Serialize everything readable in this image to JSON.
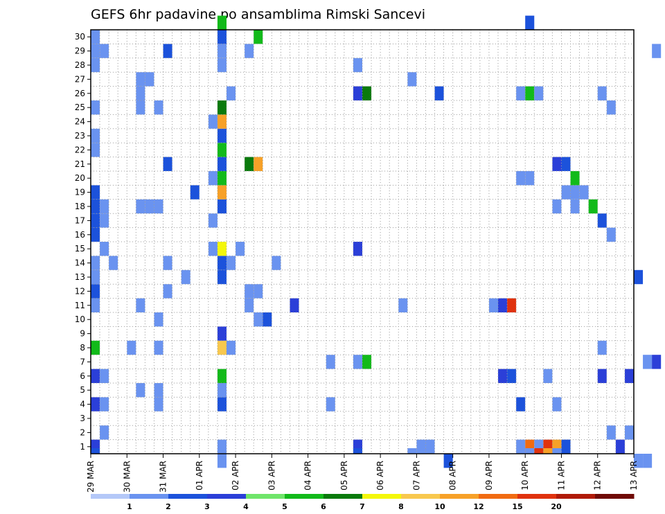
{
  "chart_data": {
    "type": "heatmap",
    "title": "GEFS 6hr padavine po ansamblima Rimski Sancevi",
    "xlabel": "",
    "ylabel": "",
    "x_tick_labels": [
      "29 MAR",
      "30 MAR",
      "31 MAR",
      "01 APR",
      "02 APR",
      "03 APR",
      "04 APR",
      "05 APR",
      "06 APR",
      "07 APR",
      "08 APR",
      "09 APR",
      "10 APR",
      "11 APR",
      "12 APR",
      "13 APR"
    ],
    "time_steps_per_day": 4,
    "y_tick_labels": [
      "1",
      "2",
      "3",
      "4",
      "5",
      "6",
      "7",
      "8",
      "9",
      "10",
      "11",
      "12",
      "13",
      "14",
      "15",
      "16",
      "17",
      "18",
      "19",
      "20",
      "21",
      "22",
      "23",
      "24",
      "25",
      "26",
      "27",
      "28",
      "29",
      "30"
    ],
    "ylim": [
      0,
      30
    ],
    "grid": true,
    "colorbar": {
      "labels": [
        "1",
        "2",
        "3",
        "4",
        "5",
        "6",
        "7",
        "8",
        "10",
        "12",
        "15",
        "20"
      ],
      "colors": [
        "#b4c8f8",
        "#6a93f0",
        "#1c52db",
        "#2b3fd8",
        "#6fe56a",
        "#12ba1a",
        "#0a7a0c",
        "#f4f70a",
        "#f8c84e",
        "#f7a128",
        "#f16b12",
        "#e0320e",
        "#b01a08",
        "#6f0a06"
      ]
    },
    "cells": [
      {
        "t": 0,
        "m": 0,
        "b": 3
      },
      {
        "t": 0,
        "m": 3,
        "b": 3
      },
      {
        "t": 0,
        "m": 5,
        "b": 3
      },
      {
        "t": 0,
        "m": 7,
        "b": 5
      },
      {
        "t": 0,
        "m": 10,
        "b": 1
      },
      {
        "t": 0,
        "m": 11,
        "b": 2
      },
      {
        "t": 0,
        "m": 12,
        "b": 1
      },
      {
        "t": 0,
        "m": 13,
        "b": 1
      },
      {
        "t": 0,
        "m": 15,
        "b": 2
      },
      {
        "t": 0,
        "m": 16,
        "b": 2
      },
      {
        "t": 0,
        "m": 17,
        "b": 2
      },
      {
        "t": 0,
        "m": 18,
        "b": 2
      },
      {
        "t": 0,
        "m": 21,
        "b": 1
      },
      {
        "t": 0,
        "m": 22,
        "b": 1
      },
      {
        "t": 0,
        "m": 24,
        "b": 1
      },
      {
        "t": 0,
        "m": 27,
        "b": 1
      },
      {
        "t": 0,
        "m": 28,
        "b": 1
      },
      {
        "t": 0,
        "m": 29,
        "b": 1
      },
      {
        "t": 1,
        "m": 1,
        "b": 1
      },
      {
        "t": 1,
        "m": 3,
        "b": 1
      },
      {
        "t": 1,
        "m": 5,
        "b": 1
      },
      {
        "t": 1,
        "m": 14,
        "b": 1
      },
      {
        "t": 1,
        "m": 16,
        "b": 1
      },
      {
        "t": 1,
        "m": 17,
        "b": 1
      },
      {
        "t": 1,
        "m": 28,
        "b": 1
      },
      {
        "t": 2,
        "m": 13,
        "b": 1
      },
      {
        "t": 4,
        "m": 7,
        "b": 1
      },
      {
        "t": 5,
        "m": 4,
        "b": 1
      },
      {
        "t": 5,
        "m": 10,
        "b": 1
      },
      {
        "t": 5,
        "m": 17,
        "b": 1
      },
      {
        "t": 5,
        "m": 24,
        "b": 1
      },
      {
        "t": 5,
        "m": 25,
        "b": 1
      },
      {
        "t": 5,
        "m": 26,
        "b": 1
      },
      {
        "t": 6,
        "m": 17,
        "b": 1
      },
      {
        "t": 6,
        "m": 26,
        "b": 1
      },
      {
        "t": 7,
        "m": 3,
        "b": 1
      },
      {
        "t": 7,
        "m": 4,
        "b": 1
      },
      {
        "t": 7,
        "m": 7,
        "b": 1
      },
      {
        "t": 7,
        "m": 9,
        "b": 1
      },
      {
        "t": 7,
        "m": 17,
        "b": 1
      },
      {
        "t": 7,
        "m": 24,
        "b": 1
      },
      {
        "t": 8,
        "m": 11,
        "b": 1
      },
      {
        "t": 8,
        "m": 13,
        "b": 1
      },
      {
        "t": 8,
        "m": 20,
        "b": 2
      },
      {
        "t": 8,
        "m": 28,
        "b": 2
      },
      {
        "t": 10,
        "m": 12,
        "b": 1
      },
      {
        "t": 11,
        "m": 18,
        "b": 2
      },
      {
        "t": 13,
        "m": 14,
        "b": 1
      },
      {
        "t": 13,
        "m": 16,
        "b": 1
      },
      {
        "t": 13,
        "m": 19,
        "b": 1
      },
      {
        "t": 13,
        "m": 23,
        "b": 1
      },
      {
        "t": 14,
        "m": 0,
        "b": 1
      },
      {
        "t": 14,
        "m": 3,
        "b": 2
      },
      {
        "t": 14,
        "m": 4,
        "b": 1
      },
      {
        "t": 14,
        "m": 5,
        "b": 5
      },
      {
        "t": 14,
        "m": 7,
        "b": 8
      },
      {
        "t": 14,
        "m": 8,
        "b": 3
      },
      {
        "t": 14,
        "m": 12,
        "b": 2
      },
      {
        "t": 14,
        "m": 13,
        "b": 2
      },
      {
        "t": 14,
        "m": 14,
        "b": 7
      },
      {
        "t": 14,
        "m": 17,
        "b": 2
      },
      {
        "t": 14,
        "m": 18,
        "b": 9
      },
      {
        "t": 14,
        "m": 19,
        "b": 5
      },
      {
        "t": 14,
        "m": 20,
        "b": 2
      },
      {
        "t": 14,
        "m": 21,
        "b": 5
      },
      {
        "t": 14,
        "m": 22,
        "b": 2
      },
      {
        "t": 14,
        "m": 23,
        "b": 9
      },
      {
        "t": 14,
        "m": 24,
        "b": 6
      },
      {
        "t": 14,
        "m": 27,
        "b": 1
      },
      {
        "t": 14,
        "m": 28,
        "b": 1
      },
      {
        "t": 14,
        "m": 29,
        "b": 2
      },
      {
        "t": 14,
        "m": 30,
        "b": 5
      },
      {
        "t": 15,
        "m": 7,
        "b": 1
      },
      {
        "t": 15,
        "m": 13,
        "b": 1
      },
      {
        "t": 15,
        "m": 25,
        "b": 1
      },
      {
        "t": 16,
        "m": 14,
        "b": 1
      },
      {
        "t": 17,
        "m": 10,
        "b": 1
      },
      {
        "t": 17,
        "m": 11,
        "b": 1
      },
      {
        "t": 17,
        "m": 20,
        "b": 6
      },
      {
        "t": 17,
        "m": 28,
        "b": 1
      },
      {
        "t": 18,
        "m": 9,
        "b": 1
      },
      {
        "t": 18,
        "m": 11,
        "b": 1
      },
      {
        "t": 18,
        "m": 20,
        "b": 9
      },
      {
        "t": 18,
        "m": 29,
        "b": 5
      },
      {
        "t": 19,
        "m": 9,
        "b": 2
      },
      {
        "t": 20,
        "m": 13,
        "b": 1
      },
      {
        "t": 22,
        "m": 10,
        "b": 3
      },
      {
        "t": 26,
        "m": 3,
        "b": 1
      },
      {
        "t": 26,
        "m": 6,
        "b": 1
      },
      {
        "t": 29,
        "m": 0,
        "b": 3
      },
      {
        "t": 29,
        "m": 6,
        "b": 1
      },
      {
        "t": 29,
        "m": 14,
        "b": 3
      },
      {
        "t": 29,
        "m": 25,
        "b": 3
      },
      {
        "t": 29,
        "m": 27,
        "b": 1
      },
      {
        "t": 30,
        "m": 6,
        "b": 5
      },
      {
        "t": 30,
        "m": 25,
        "b": 6
      },
      {
        "t": 34,
        "m": 10,
        "b": 1
      },
      {
        "t": 35,
        "m": 26,
        "b": 1
      },
      {
        "t": 36,
        "m": 0,
        "b": 1
      },
      {
        "t": 37,
        "m": 0,
        "b": 1
      },
      {
        "t": 38,
        "m": 25,
        "b": 2
      },
      {
        "t": 44,
        "m": 10,
        "b": 1
      },
      {
        "t": 45,
        "m": 5,
        "b": 3
      },
      {
        "t": 45,
        "m": 10,
        "b": 3
      },
      {
        "t": 46,
        "m": 5,
        "b": 2
      },
      {
        "t": 46,
        "m": 10,
        "b": 11
      },
      {
        "t": 47,
        "m": 0,
        "b": 1
      },
      {
        "t": 47,
        "m": 3,
        "b": 2
      },
      {
        "t": 47,
        "m": 19,
        "b": 1
      },
      {
        "t": 47,
        "m": 25,
        "b": 1
      },
      {
        "t": 48,
        "m": 0,
        "b": 10
      },
      {
        "t": 48,
        "m": 19,
        "b": 1
      },
      {
        "t": 48,
        "m": 25,
        "b": 5
      },
      {
        "t": 49,
        "m": 0,
        "b": 1
      },
      {
        "t": 49,
        "m": 25,
        "b": 1
      },
      {
        "t": 50,
        "m": 0,
        "b": 11
      },
      {
        "t": 50,
        "m": 5,
        "b": 1
      },
      {
        "t": 51,
        "m": 0,
        "b": 9
      },
      {
        "t": 51,
        "m": 3,
        "b": 1
      },
      {
        "t": 51,
        "m": 17,
        "b": 1
      },
      {
        "t": 51,
        "m": 20,
        "b": 3
      },
      {
        "t": 52,
        "m": 0,
        "b": 2
      },
      {
        "t": 52,
        "m": 18,
        "b": 1
      },
      {
        "t": 52,
        "m": 20,
        "b": 2
      },
      {
        "t": 53,
        "m": 18,
        "b": 1
      },
      {
        "t": 53,
        "m": 17,
        "b": 1
      },
      {
        "t": 53,
        "m": 19,
        "b": 5
      },
      {
        "t": 54,
        "m": 18,
        "b": 1
      },
      {
        "t": 55,
        "m": 17,
        "b": 5
      },
      {
        "t": 56,
        "m": 5,
        "b": 3
      },
      {
        "t": 56,
        "m": 7,
        "b": 1
      },
      {
        "t": 56,
        "m": 16,
        "b": 2
      },
      {
        "t": 56,
        "m": 25,
        "b": 1
      },
      {
        "t": 57,
        "m": 1,
        "b": 1
      },
      {
        "t": 57,
        "m": 15,
        "b": 1
      },
      {
        "t": 57,
        "m": 24,
        "b": 1
      },
      {
        "t": 58,
        "m": 0,
        "b": 3
      },
      {
        "t": 59,
        "m": 1,
        "b": 1
      },
      {
        "t": 60,
        "m": 12,
        "b": 2
      },
      {
        "t": 61,
        "m": 6,
        "b": 1
      },
      {
        "t": 62,
        "m": 6,
        "b": 3
      },
      {
        "t": 62,
        "m": 28,
        "b": 1
      }
    ],
    "edge_cells": [
      {
        "t": 14,
        "m": -1,
        "b": 1
      },
      {
        "t": 39,
        "m": -1,
        "b": 2
      },
      {
        "t": 60,
        "m": -1,
        "b": 1
      },
      {
        "t": 61,
        "m": -1,
        "b": 1
      },
      {
        "t": 48,
        "m": 30,
        "b": 2
      },
      {
        "t": 59,
        "m": 5,
        "b": 3
      }
    ],
    "bottom_strip": [
      {
        "t": 0,
        "b": 2
      },
      {
        "t": 14,
        "b": 1
      },
      {
        "t": 29,
        "b": 2
      },
      {
        "t": 35,
        "b": 1
      },
      {
        "t": 36,
        "b": 1
      },
      {
        "t": 48,
        "b": 1
      },
      {
        "t": 49,
        "b": 11
      },
      {
        "t": 50,
        "b": 9
      },
      {
        "t": 51,
        "b": 1
      }
    ]
  }
}
